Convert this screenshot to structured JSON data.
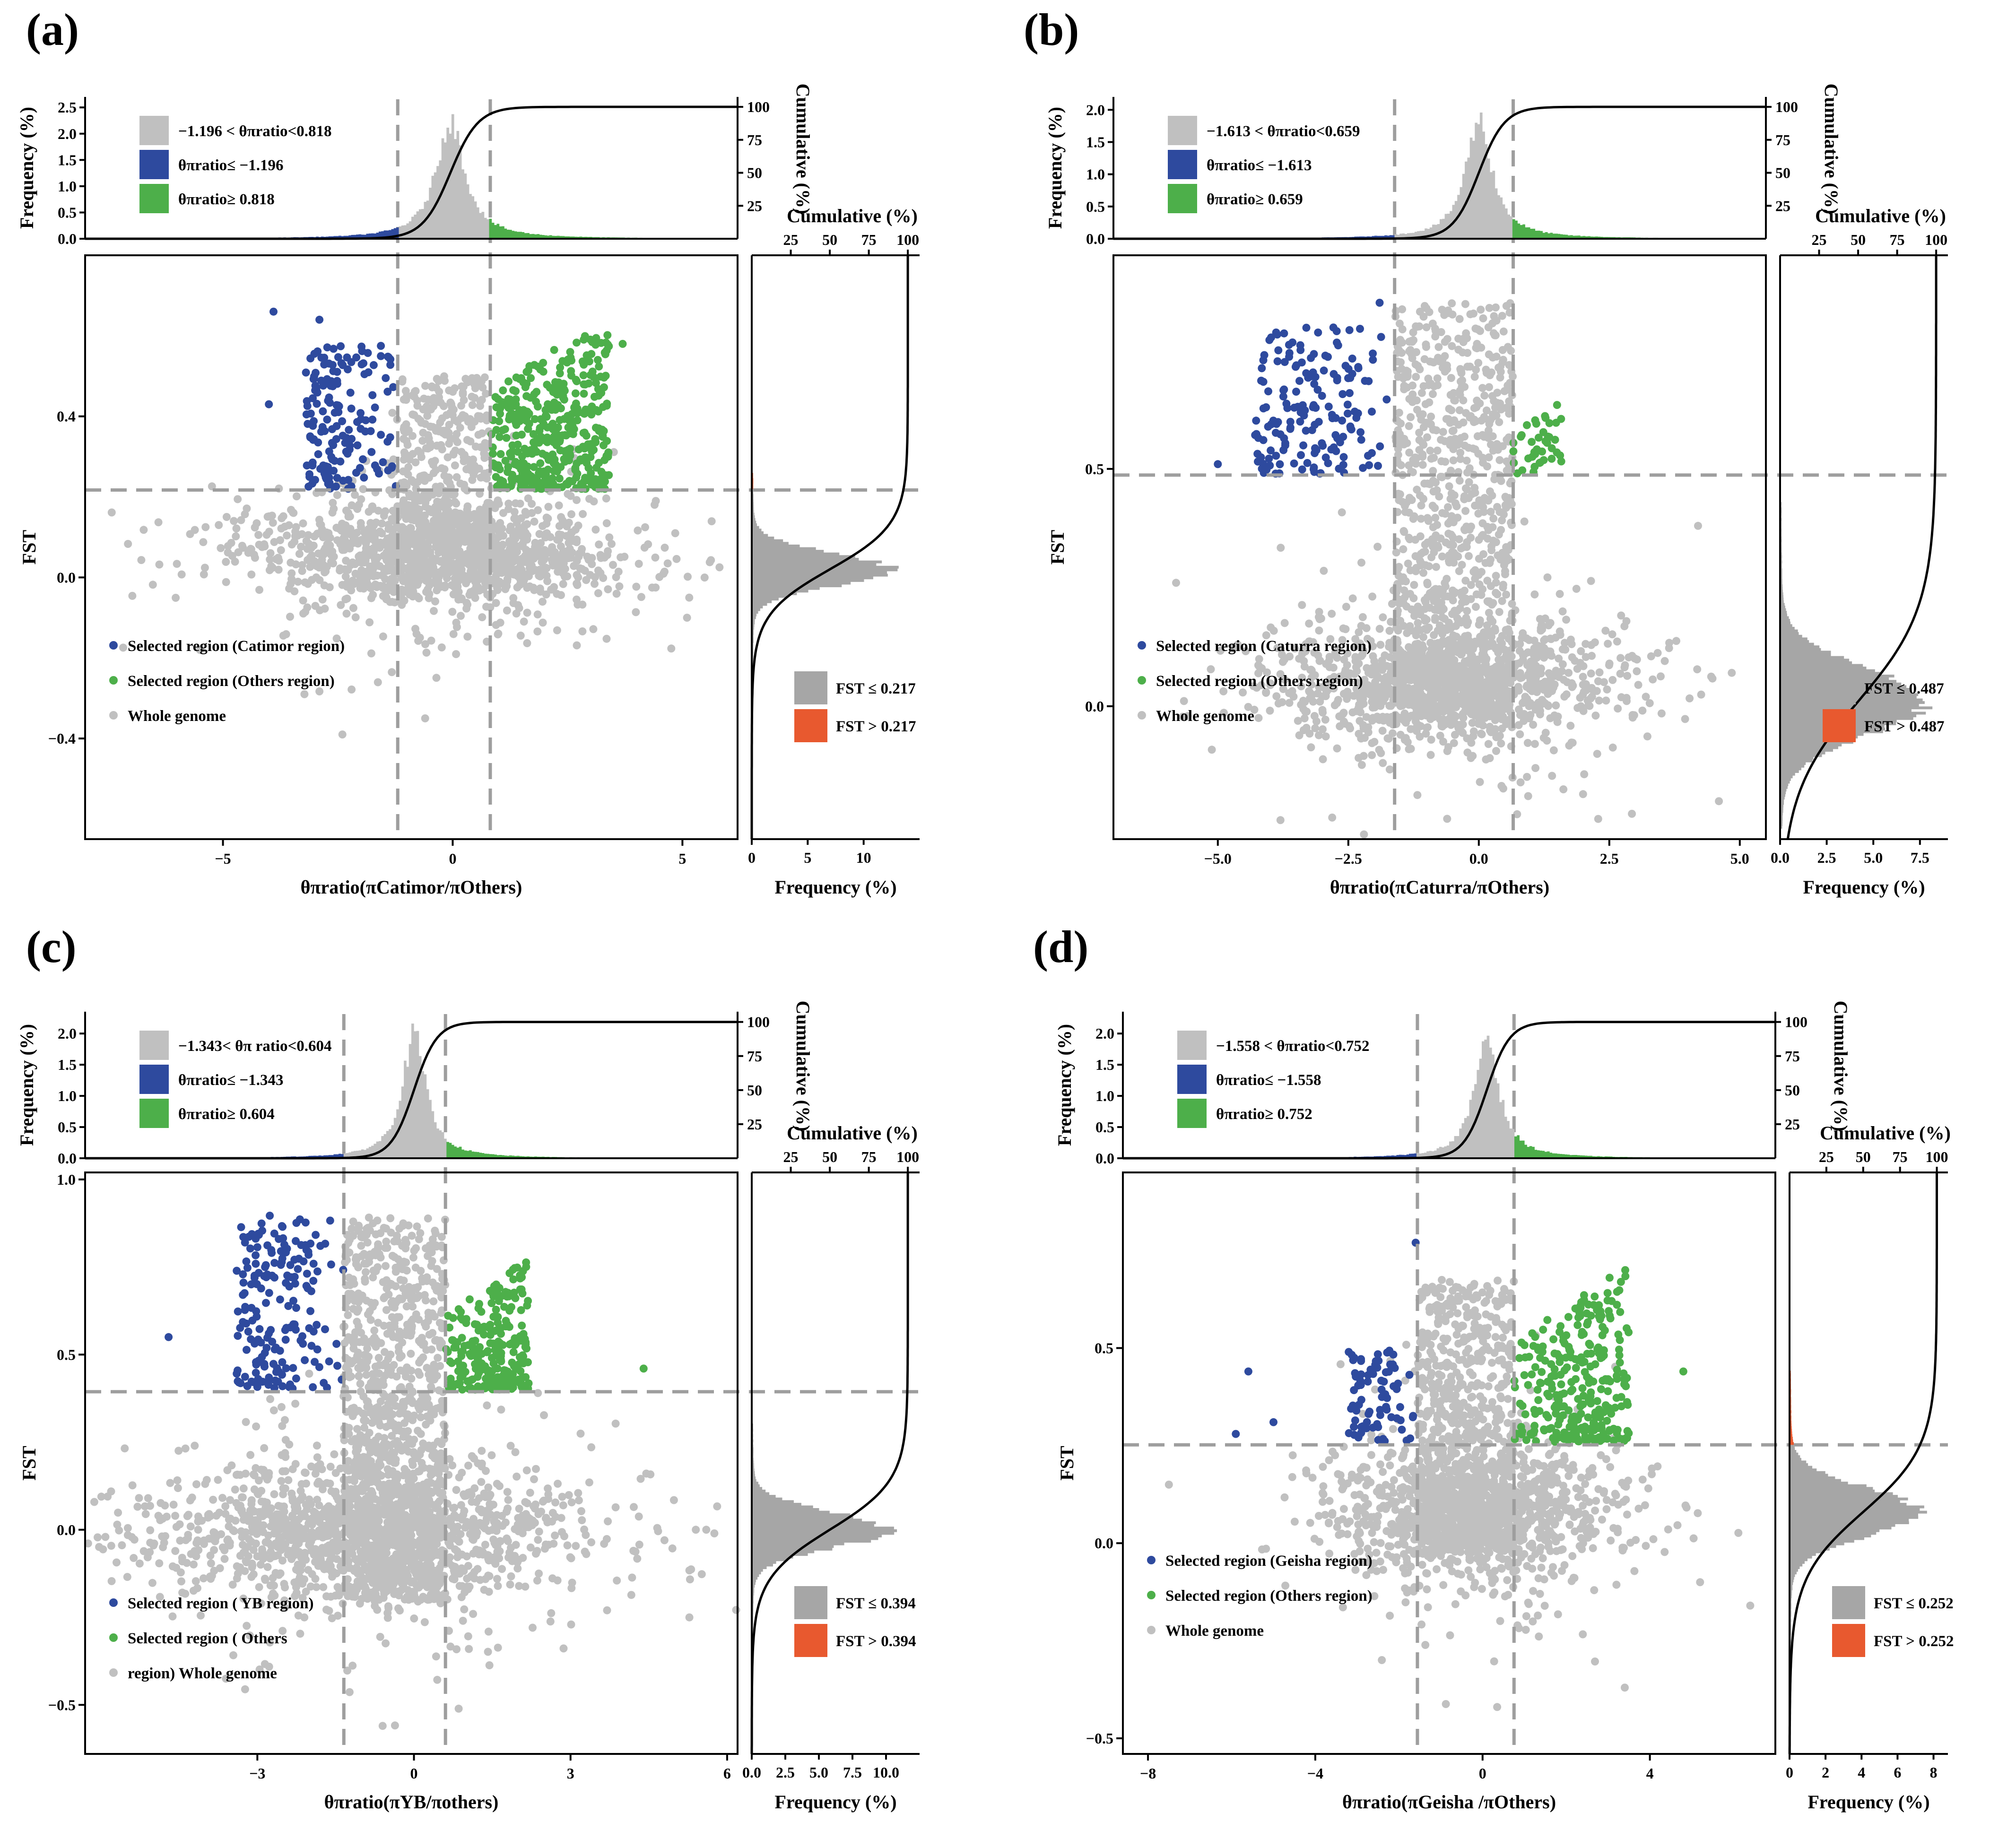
{
  "colors": {
    "blue": "#2E4A9E",
    "green": "#4DAF4A",
    "gray": "#C0C0C0",
    "hist_gray": "#A6A6A6",
    "orange": "#E8592F",
    "dash": "#9E9E9E",
    "curve": "#000000"
  },
  "chart_data": [
    {
      "type": "scatter",
      "panel_label": "(a)",
      "xlabel": "θπratio(πCatimor/πOthers)",
      "ylabel": "FST",
      "xlim": [
        -8.0,
        6.2
      ],
      "ylim": [
        -0.65,
        0.8
      ],
      "xticks": [
        -5,
        0,
        5
      ],
      "xtick_labels": [
        "−5",
        "0",
        "5"
      ],
      "yticks": [
        -0.4,
        0.0,
        0.4
      ],
      "ytick_labels": [
        "−0.4",
        "0.0",
        "0.4"
      ],
      "theta_low": -1.196,
      "theta_high": 0.818,
      "fst_threshold": 0.217,
      "top_hist": {
        "ylabel": "Frequency (%)",
        "ymax": 2.7,
        "yticks": [
          0.0,
          0.5,
          1.0,
          1.5,
          2.0,
          2.5
        ],
        "ytick_labels": [
          "0.0",
          "0.5",
          "1.0",
          "1.5",
          "2.0",
          "2.5"
        ],
        "peak": 2.5,
        "center": -0.05,
        "width": 0.55,
        "cum_label": "Cumulative (%)",
        "cum_ticks": [
          25,
          50,
          75,
          100
        ],
        "cum_tick_labels": [
          "25",
          "50",
          "75",
          "100"
        ]
      },
      "side_hist": {
        "xlabel": "Frequency (%)",
        "xmax": 15,
        "xticks": [
          0,
          5,
          10
        ],
        "xtick_labels": [
          "0",
          "5",
          "10"
        ],
        "peak": 13,
        "center": 0.02,
        "width": 0.04,
        "cum_label": "Cumulative (%)",
        "cum_ticks": [
          25,
          50,
          75,
          100
        ],
        "cum_tick_labels": [
          "25",
          "50",
          "75",
          "100"
        ]
      },
      "top_legend": [
        "−1.196  < θπratio<0.818",
        "θπratio≤ −1.196",
        "θπratio≥ 0.818"
      ],
      "scatter_legend": [
        "Selected region (Catimor region)",
        "Selected region (Others region)",
        "Whole genome"
      ],
      "fst_legend": [
        "FST ≤ 0.217",
        "FST > 0.217"
      ],
      "gray_cloud": {
        "cx": -0.3,
        "cy": 0.06,
        "sx": 1.8,
        "sy": 0.06,
        "n": 1400
      },
      "gray_column": {
        "x0": -1.1,
        "x1": 0.8,
        "y0": 0.1,
        "y1": 0.5,
        "n": 350
      },
      "blue_region": {
        "x0": -3.2,
        "x1": -1.2,
        "y0": 0.22,
        "y1": 0.58,
        "n": 160
      },
      "green_region": {
        "x0": 0.82,
        "x1": 3.4,
        "y0": 0.22,
        "y1": 0.66,
        "n": 420
      },
      "outliers": [
        {
          "x": -3.9,
          "y": 0.66,
          "c": "blue"
        },
        {
          "x": -4.0,
          "y": 0.43,
          "c": "blue"
        },
        {
          "x": -2.9,
          "y": 0.64,
          "c": "blue"
        },
        {
          "x": 3.7,
          "y": 0.58,
          "c": "green"
        },
        {
          "x": 5.1,
          "y": -0.1,
          "c": "gray"
        },
        {
          "x": -5.5,
          "y": -0.18,
          "c": "gray"
        },
        {
          "x": -0.6,
          "y": -0.35,
          "c": "gray"
        },
        {
          "x": -2.4,
          "y": -0.39,
          "c": "gray"
        }
      ]
    },
    {
      "type": "scatter",
      "panel_label": "(b)",
      "xlabel": "θπratio(πCaturra/πOthers)",
      "ylabel": "FST",
      "xlim": [
        -7.0,
        5.5
      ],
      "ylim": [
        -0.28,
        0.95
      ],
      "xticks": [
        -5.0,
        -2.5,
        0.0,
        2.5,
        5.0
      ],
      "xtick_labels": [
        "−5.0",
        "−2.5",
        "0.0",
        "2.5",
        "5.0"
      ],
      "yticks": [
        0.0,
        0.5
      ],
      "ytick_labels": [
        "0.0",
        "0.5"
      ],
      "theta_low": -1.613,
      "theta_high": 0.659,
      "fst_threshold": 0.487,
      "top_hist": {
        "ylabel": "Frequency (%)",
        "ymax": 2.2,
        "yticks": [
          0.0,
          0.5,
          1.0,
          1.5,
          2.0
        ],
        "ytick_labels": [
          "0.0",
          "0.5",
          "1.0",
          "1.5",
          "2.0"
        ],
        "peak": 2.05,
        "center": 0.0,
        "width": 0.45,
        "cum_label": "Cumulative (%)",
        "cum_ticks": [
          25,
          50,
          75,
          100
        ],
        "cum_tick_labels": [
          "25",
          "50",
          "75",
          "100"
        ]
      },
      "side_hist": {
        "xlabel": "Frequency (%)",
        "xmax": 9,
        "xticks": [
          0.0,
          2.5,
          5.0,
          7.5
        ],
        "xtick_labels": [
          "0.0",
          "2.5",
          "5.0",
          "7.5"
        ],
        "peak": 8.0,
        "center": 0.01,
        "width": 0.07,
        "cum_label": "Cumulative (%)",
        "cum_ticks": [
          25,
          50,
          75,
          100
        ],
        "cum_tick_labels": [
          "25",
          "50",
          "75",
          "100"
        ]
      },
      "top_legend": [
        "−1.613  < θπratio<0.659",
        "θπratio≤ −1.613",
        "θπratio≥ 0.659"
      ],
      "scatter_legend": [
        "Selected region (Caturra region)",
        "Selected region (Others region)",
        "Whole genome"
      ],
      "fst_legend": [
        "FST ≤ 0.487",
        "FST > 0.487"
      ],
      "gray_cloud": {
        "cx": -0.6,
        "cy": 0.05,
        "sx": 1.5,
        "sy": 0.06,
        "n": 1300
      },
      "gray_column": {
        "x0": -1.6,
        "x1": 0.65,
        "y0": 0.0,
        "y1": 0.85,
        "n": 900
      },
      "blue_region": {
        "x0": -4.3,
        "x1": -1.62,
        "y0": 0.49,
        "y1": 0.8,
        "n": 170
      },
      "green_region": {
        "x0": 0.66,
        "x1": 1.6,
        "y0": 0.49,
        "y1": 0.66,
        "n": 40
      },
      "outliers": [
        {
          "x": -5.0,
          "y": 0.51,
          "c": "blue"
        },
        {
          "x": -1.9,
          "y": 0.85,
          "c": "blue"
        },
        {
          "x": 4.2,
          "y": 0.38,
          "c": "gray"
        },
        {
          "x": 4.6,
          "y": -0.2,
          "c": "gray"
        },
        {
          "x": -5.8,
          "y": 0.26,
          "c": "gray"
        },
        {
          "x": -3.8,
          "y": -0.24,
          "c": "gray"
        },
        {
          "x": 3.2,
          "y": 0.02,
          "c": "gray"
        },
        {
          "x": -2.2,
          "y": -0.27,
          "c": "gray"
        }
      ]
    },
    {
      "type": "scatter",
      "panel_label": "(c)",
      "xlabel": "θπratio(πYB/πothers)",
      "ylabel": "FST",
      "xlim": [
        -6.3,
        6.2
      ],
      "ylim": [
        -0.64,
        1.02
      ],
      "xticks": [
        -3,
        0,
        3,
        6
      ],
      "xtick_labels": [
        "−3",
        "0",
        "3",
        "6"
      ],
      "yticks": [
        -0.5,
        0.0,
        0.5,
        1.0
      ],
      "ytick_labels": [
        "−0.5",
        "0.0",
        "0.5",
        "1.0"
      ],
      "theta_low": -1.343,
      "theta_high": 0.604,
      "fst_threshold": 0.394,
      "top_hist": {
        "ylabel": "Frequency (%)",
        "ymax": 2.35,
        "yticks": [
          0.0,
          0.5,
          1.0,
          1.5,
          2.0
        ],
        "ytick_labels": [
          "0.0",
          "0.5",
          "1.0",
          "1.5",
          "2.0"
        ],
        "peak": 2.2,
        "center": 0.0,
        "width": 0.4,
        "cum_label": "Cumulative (%)",
        "cum_ticks": [
          25,
          50,
          75,
          100
        ],
        "cum_tick_labels": [
          "25",
          "50",
          "75",
          "100"
        ]
      },
      "side_hist": {
        "xlabel": "Frequency (%)",
        "xmax": 12.5,
        "xticks": [
          0.0,
          2.5,
          5.0,
          7.5,
          10.0
        ],
        "xtick_labels": [
          "0.0",
          "2.5",
          "5.0",
          "7.5",
          "10.0"
        ],
        "peak": 10.5,
        "center": 0.0,
        "width": 0.05,
        "cum_label": "Cumulative (%)",
        "cum_ticks": [
          25,
          50,
          75,
          100
        ],
        "cum_tick_labels": [
          "25",
          "50",
          "75",
          "100"
        ]
      },
      "top_legend": [
        "−1.343< θπ ratio<0.604",
        "θπratio≤ −1.343",
        "θπratio≥ 0.604"
      ],
      "scatter_legend": [
        "Selected region (  YB region)",
        "Selected region (   Others",
        "region) Whole genome"
      ],
      "fst_legend": [
        "FST ≤ 0.394",
        "FST > 0.394"
      ],
      "gray_cloud": {
        "cx": -1.0,
        "cy": 0.0,
        "sx": 1.9,
        "sy": 0.09,
        "n": 1500
      },
      "gray_column": {
        "x0": -1.35,
        "x1": 0.6,
        "y0": -0.2,
        "y1": 0.9,
        "n": 1000
      },
      "blue_region": {
        "x0": -3.4,
        "x1": -1.35,
        "y0": 0.4,
        "y1": 0.9,
        "n": 190
      },
      "green_region": {
        "x0": 0.61,
        "x1": 2.2,
        "y0": 0.4,
        "y1": 0.78,
        "n": 240
      },
      "outliers": [
        {
          "x": -4.7,
          "y": 0.55,
          "c": "blue"
        },
        {
          "x": 4.4,
          "y": 0.46,
          "c": "green"
        },
        {
          "x": 5.4,
          "y": 0.0,
          "c": "gray"
        },
        {
          "x": 5.6,
          "y": 0.0,
          "c": "gray"
        },
        {
          "x": 4.8,
          "y": -0.03,
          "c": "gray"
        },
        {
          "x": -0.6,
          "y": -0.56,
          "c": "gray"
        },
        {
          "x": 3.7,
          "y": -0.23,
          "c": "gray"
        },
        {
          "x": -4.2,
          "y": 0.24,
          "c": "gray"
        }
      ]
    },
    {
      "type": "scatter",
      "panel_label": "(d)",
      "xlabel": "θπratio(πGeisha /πOthers)",
      "ylabel": "FST",
      "xlim": [
        -8.6,
        7.0
      ],
      "ylim": [
        -0.54,
        0.95
      ],
      "xticks": [
        -8,
        -4,
        0,
        4
      ],
      "xtick_labels": [
        "−8",
        "−4",
        "0",
        "4"
      ],
      "yticks": [
        -0.5,
        0.0,
        0.5
      ],
      "ytick_labels": [
        "−0.5",
        "0.0",
        "0.5"
      ],
      "theta_low": -1.558,
      "theta_high": 0.752,
      "fst_threshold": 0.252,
      "top_hist": {
        "ylabel": "Frequency (%)",
        "ymax": 2.35,
        "yticks": [
          0.0,
          0.5,
          1.0,
          1.5,
          2.0
        ],
        "ytick_labels": [
          "0.0",
          "0.5",
          "1.0",
          "1.5",
          "2.0"
        ],
        "peak": 2.2,
        "center": 0.1,
        "width": 0.5,
        "cum_label": "Cumulative (%)",
        "cum_ticks": [
          25,
          50,
          75,
          100
        ],
        "cum_tick_labels": [
          "25",
          "50",
          "75",
          "100"
        ]
      },
      "side_hist": {
        "xlabel": "Frequency (%)",
        "xmax": 8.8,
        "xticks": [
          0,
          2,
          4,
          6,
          8
        ],
        "xtick_labels": [
          "0",
          "2",
          "4",
          "6",
          "8"
        ],
        "peak": 7.6,
        "center": 0.08,
        "width": 0.06,
        "cum_label": "Cumulative (%)",
        "cum_ticks": [
          25,
          50,
          75,
          100
        ],
        "cum_tick_labels": [
          "25",
          "50",
          "75",
          "100"
        ]
      },
      "top_legend": [
        "−1.558  < θπratio<0.752",
        "θπratio≤ −1.558",
        "θπratio≥ 0.752"
      ],
      "scatter_legend": [
        "Selected region (Geisha region)",
        "Selected region (Others region)",
        "Whole genome"
      ],
      "fst_legend": [
        "FST ≤ 0.252",
        "FST > 0.252"
      ],
      "gray_cloud": {
        "cx": -0.2,
        "cy": 0.08,
        "sx": 1.5,
        "sy": 0.08,
        "n": 1300
      },
      "gray_column": {
        "x0": -1.55,
        "x1": 0.75,
        "y0": 0.0,
        "y1": 0.68,
        "n": 650
      },
      "blue_region": {
        "x0": -3.2,
        "x1": -1.56,
        "y0": 0.26,
        "y1": 0.5,
        "n": 80
      },
      "green_region": {
        "x0": 0.76,
        "x1": 3.5,
        "y0": 0.26,
        "y1": 0.72,
        "n": 300
      },
      "outliers": [
        {
          "x": -5.6,
          "y": 0.44,
          "c": "blue"
        },
        {
          "x": -5.9,
          "y": 0.28,
          "c": "blue"
        },
        {
          "x": -5.0,
          "y": 0.31,
          "c": "blue"
        },
        {
          "x": -3.2,
          "y": 0.49,
          "c": "blue"
        },
        {
          "x": -1.6,
          "y": 0.77,
          "c": "blue"
        },
        {
          "x": 4.8,
          "y": 0.44,
          "c": "green"
        },
        {
          "x": 6.4,
          "y": -0.16,
          "c": "gray"
        },
        {
          "x": -7.5,
          "y": 0.15,
          "c": "gray"
        },
        {
          "x": 5.2,
          "y": -0.1,
          "c": "gray"
        },
        {
          "x": 3.4,
          "y": -0.37,
          "c": "gray"
        }
      ]
    }
  ]
}
